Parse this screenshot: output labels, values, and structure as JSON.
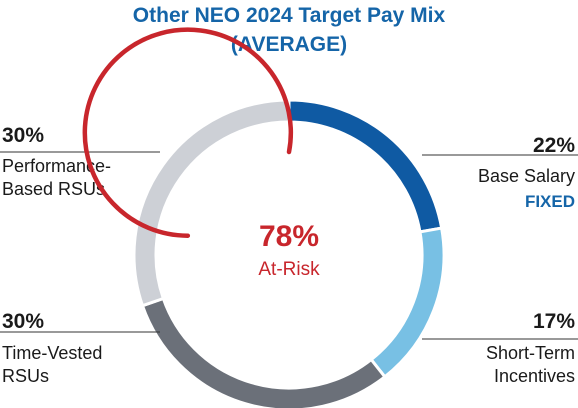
{
  "chart_data": {
    "type": "pie",
    "title": "Other NEO 2024 Target Pay Mix",
    "subtitle": "(AVERAGE)",
    "categories": [
      "Base Salary",
      "Short-Term Incentives",
      "Time-Vested RSUs",
      "Performance-Based RSUs"
    ],
    "values": [
      22,
      17,
      30,
      30
    ],
    "value_labels": [
      "22%",
      "17%",
      "30%",
      "30%"
    ],
    "label_lines": [
      [
        "Base Salary"
      ],
      [
        "Short-Term",
        "Incentives"
      ],
      [
        "Time-Vested",
        "RSUs"
      ],
      [
        "Performance-",
        "Based RSUs"
      ]
    ],
    "colors": [
      "#0f5aa3",
      "#78c0e4",
      "#6b7079",
      "#cdd0d6"
    ],
    "annotation": {
      "fixed_label": "FIXED",
      "fixed_color": "#1565a8",
      "at_risk_value": "78%",
      "at_risk_label": "At-Risk",
      "at_risk_fraction": 0.78,
      "at_risk_color": "#c8262c"
    },
    "donut": true
  }
}
